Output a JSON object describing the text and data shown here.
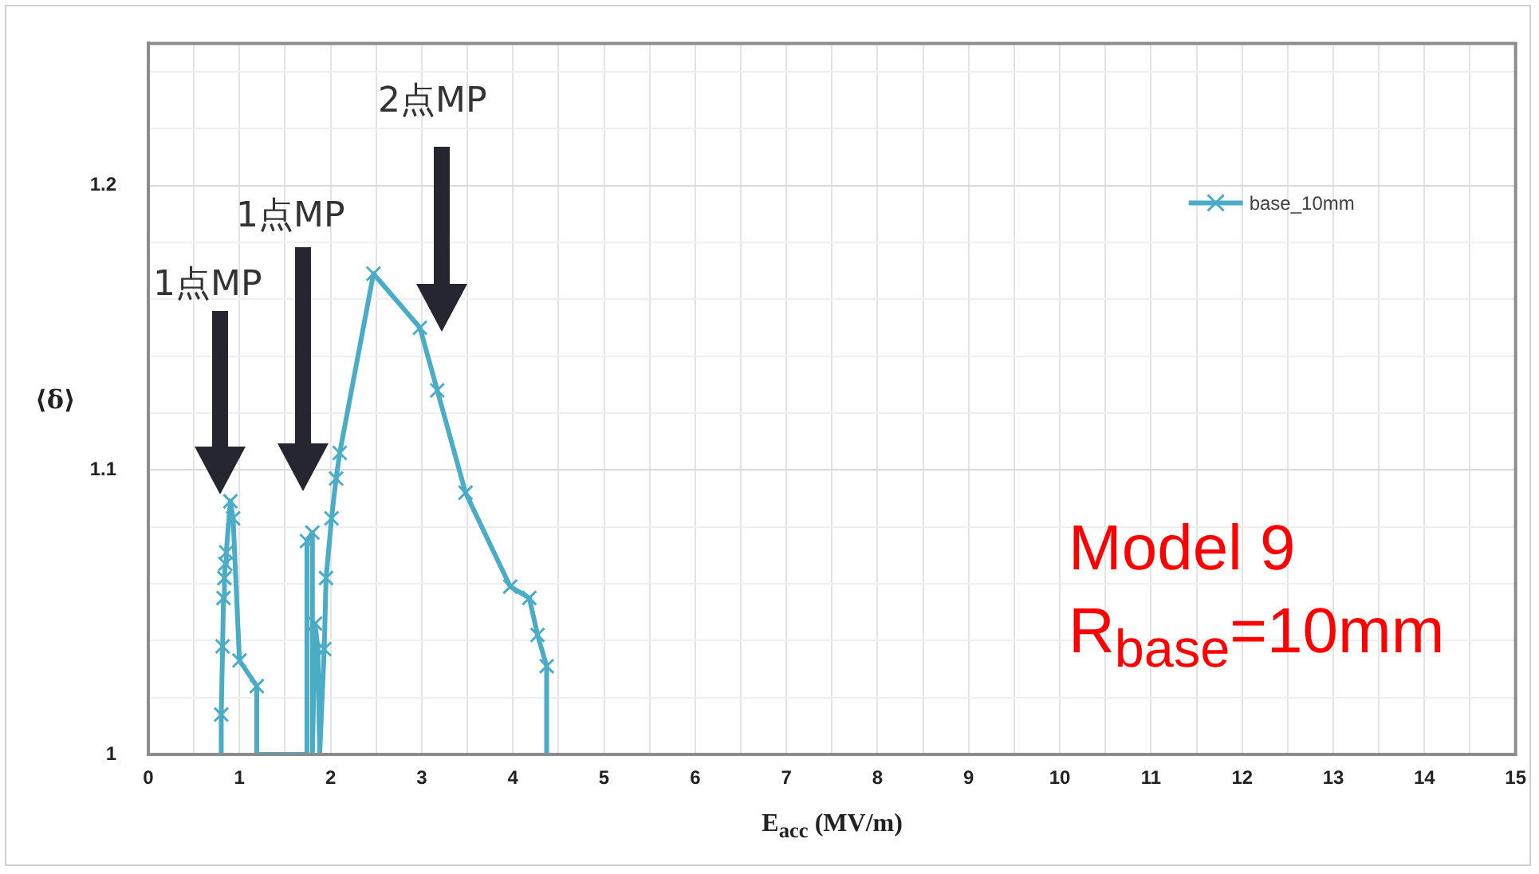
{
  "chart_data": {
    "type": "line",
    "xlabel": "E$_{acc}$ (MV/m)",
    "ylabel": "⟨δ⟩",
    "series": [
      {
        "name": "base_10mm",
        "color": "#4bacc6",
        "x": [
          0.79,
          0.8,
          0.815,
          0.825,
          0.835,
          0.845,
          0.855,
          0.9,
          0.93,
          1.0,
          1.19,
          1.19,
          1.74,
          1.74,
          1.8,
          1.8,
          1.83,
          1.86,
          1.88,
          1.93,
          1.95,
          2.01,
          2.06,
          2.1,
          2.47,
          2.98,
          3.17,
          3.48,
          3.97,
          4.18,
          4.27,
          4.37,
          4.37
        ],
        "values": [
          1,
          1.014,
          1.038,
          1.055,
          1.062,
          1.067,
          1.071,
          1.089,
          1.083,
          1.033,
          1.024,
          1,
          1,
          1.075,
          1.078,
          1,
          1.046,
          1.037,
          1,
          1.037,
          1.062,
          1.083,
          1.097,
          1.106,
          1.169,
          1.15,
          1.128,
          1.092,
          1.059,
          1.055,
          1.042,
          1.031,
          1
        ]
      }
    ],
    "xlim": [
      0,
      15
    ],
    "ylim": [
      1,
      1.25
    ],
    "xticks": [
      0,
      {
        "value": 0.5,
        "label": null
      },
      1,
      {
        "value": 1.5,
        "label": null
      },
      2,
      {
        "value": 2.5,
        "label": null
      },
      3,
      {
        "value": 3.5,
        "label": null
      },
      4,
      {
        "value": 4.5,
        "label": null
      },
      5,
      {
        "value": 5.5,
        "label": null
      },
      6,
      {
        "value": 6.5,
        "label": null
      },
      7,
      {
        "value": 7.5,
        "label": null
      },
      8,
      {
        "value": 8.5,
        "label": null
      },
      9,
      {
        "value": 9.5,
        "label": null
      },
      10,
      {
        "value": 10.5,
        "label": null
      },
      11,
      {
        "value": 11.5,
        "label": null
      },
      12,
      {
        "value": 12.5,
        "label": null
      },
      13,
      {
        "value": 13.5,
        "label": null
      },
      14,
      {
        "value": 14.5,
        "label": null
      },
      15
    ],
    "yticks": [
      1,
      {
        "value": 1.02,
        "label": null
      },
      {
        "value": 1.04,
        "label": null
      },
      {
        "value": 1.06,
        "label": null
      },
      {
        "value": 1.08,
        "label": null
      },
      1.1,
      {
        "value": 1.12,
        "label": null
      },
      {
        "value": 1.14,
        "label": null
      },
      {
        "value": 1.16,
        "label": null
      },
      {
        "value": 1.18,
        "label": null
      },
      1.2,
      {
        "value": 1.22,
        "label": null
      },
      {
        "value": 1.24,
        "label": null
      }
    ],
    "grid": true,
    "legend": "top right",
    "marker": "cross",
    "line_style": "solid",
    "annotations": [
      "1点MP",
      "1点MP",
      "2点MP",
      "Model 9",
      "R$_{base}$=10mm"
    ]
  }
}
